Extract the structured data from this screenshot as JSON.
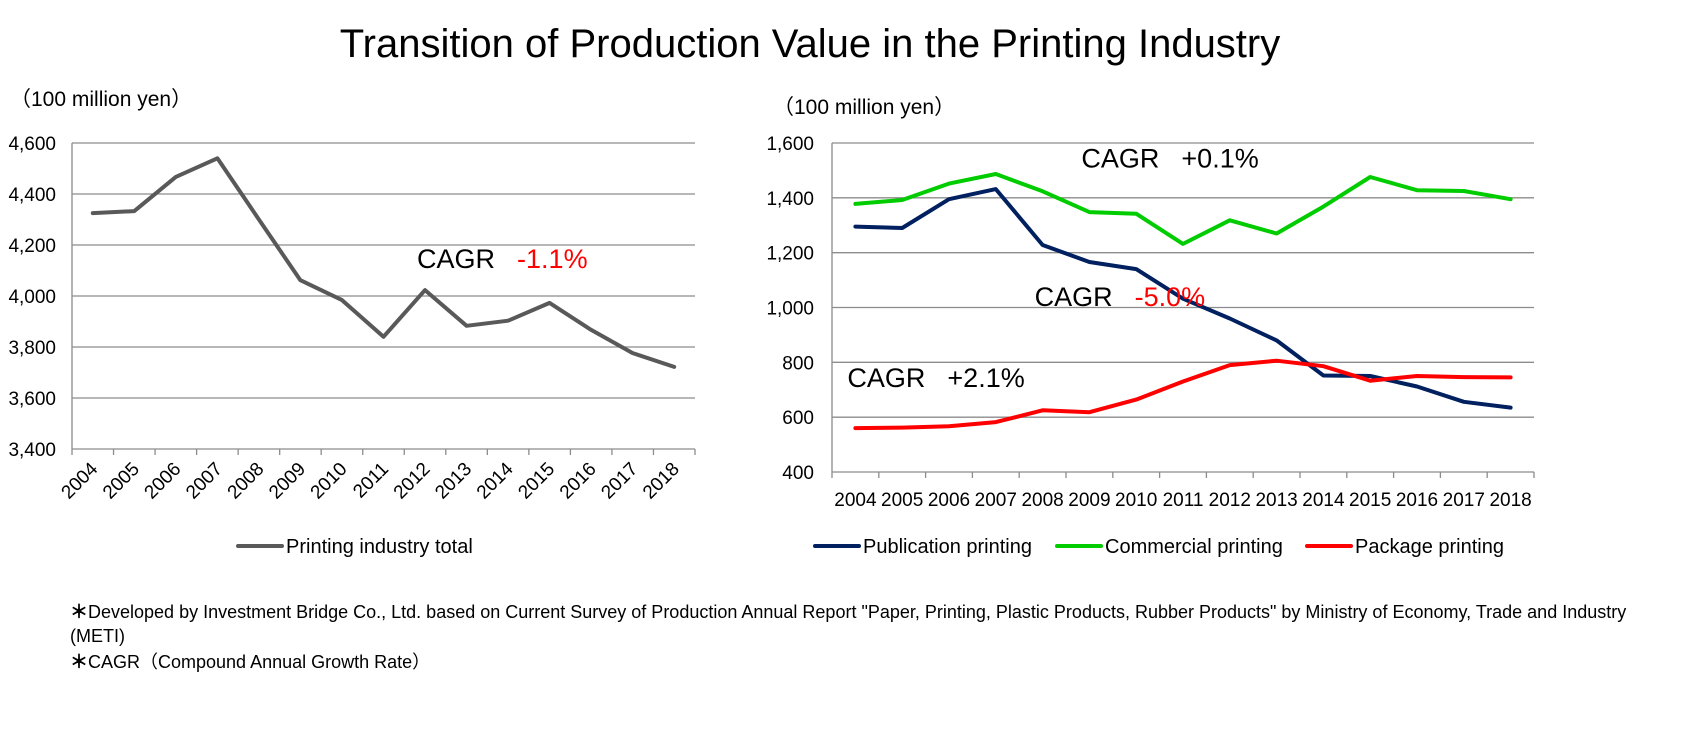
{
  "title": "Transition of Production Value in the Printing Industry",
  "footnotes": [
    "Developed  by Investment Bridge Co., Ltd. based on Current Survey of Production Annual Report \"Paper, Printing, Plastic Products, Rubber Products\" by Ministry of Economy, Trade and Industry (METI)",
    "CAGR（Compound Annual Growth Rate）"
  ],
  "footnote_marker": "＊",
  "chart_data": [
    {
      "type": "line",
      "unit_label": "（100 million yen）",
      "categories": [
        "2004",
        "2005",
        "2006",
        "2007",
        "2008",
        "2009",
        "2010",
        "2011",
        "2012",
        "2013",
        "2014",
        "2015",
        "2016",
        "2017",
        "2018"
      ],
      "ylim": [
        3400,
        4600
      ],
      "yticks": [
        3400,
        3600,
        3800,
        4000,
        4200,
        4400,
        4600
      ],
      "ytick_labels": [
        "3,400",
        "3,600",
        "3,800",
        "4,000",
        "4,200",
        "4,400",
        "4,600"
      ],
      "grid": true,
      "xtick_rotation": -45,
      "legend_position": "bottom",
      "series": [
        {
          "name": "Printing industry total",
          "color": "#595959",
          "values": [
            4325,
            4333,
            4467,
            4540,
            4300,
            4062,
            3984,
            3840,
            4023,
            3883,
            3903,
            3973,
            3867,
            3776,
            3722
          ]
        }
      ],
      "annotations": [
        {
          "label": "CAGR",
          "value": "-1.1%",
          "value_color": "#ff0000",
          "at_category": "2012",
          "at_y": 4110
        }
      ]
    },
    {
      "type": "line",
      "unit_label": "（100 million yen）",
      "categories": [
        "2004",
        "2005",
        "2006",
        "2007",
        "2008",
        "2009",
        "2010",
        "2011",
        "2012",
        "2013",
        "2014",
        "2015",
        "2016",
        "2017",
        "2018"
      ],
      "ylim": [
        400,
        1600
      ],
      "yticks": [
        400,
        600,
        800,
        1000,
        1200,
        1400,
        1600
      ],
      "ytick_labels": [
        "400",
        "600",
        "800",
        "1,000",
        "1,200",
        "1,400",
        "1,600"
      ],
      "grid": true,
      "xtick_rotation": 0,
      "legend_position": "bottom",
      "series": [
        {
          "name": "Publication printing",
          "color": "#002060",
          "values": [
            1295,
            1290,
            1395,
            1432,
            1228,
            1166,
            1140,
            1032,
            960,
            880,
            752,
            750,
            712,
            656,
            635
          ]
        },
        {
          "name": "Commercial printing",
          "color": "#00cc00",
          "values": [
            1378,
            1392,
            1452,
            1487,
            1424,
            1348,
            1342,
            1232,
            1318,
            1270,
            1368,
            1476,
            1428,
            1425,
            1395
          ]
        },
        {
          "name": "Package printing",
          "color": "#ff0000",
          "values": [
            560,
            562,
            567,
            582,
            625,
            618,
            664,
            730,
            790,
            806,
            786,
            733,
            750,
            746,
            745
          ]
        }
      ],
      "annotations": [
        {
          "label": "CAGR",
          "value": "+0.1%",
          "value_color": "#000000",
          "at_category": "2009",
          "at_y": 1510
        },
        {
          "label": "CAGR",
          "value": "-5.0%",
          "value_color": "#ff0000",
          "at_category": "2008",
          "at_y": 1005
        },
        {
          "label": "CAGR",
          "value": "+2.1%",
          "value_color": "#000000",
          "at_category": "2004",
          "at_y": 710
        }
      ]
    }
  ]
}
